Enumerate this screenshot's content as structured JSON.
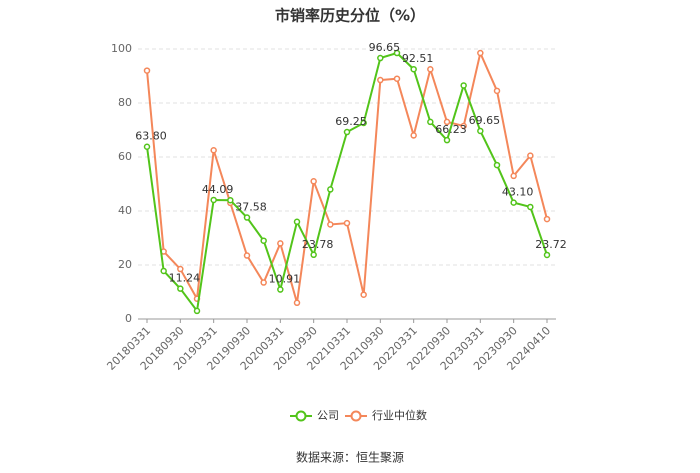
{
  "chart_data": {
    "type": "line",
    "title": "市销率历史分位（%）",
    "categories": [
      "20180331",
      null,
      "20180930",
      null,
      "20190331",
      null,
      "20190930",
      null,
      "20200331",
      null,
      "20200930",
      null,
      "20210331",
      null,
      "20210930",
      null,
      "20220331",
      null,
      "20220930",
      null,
      "20230331",
      null,
      "20230930",
      null,
      "20240410"
    ],
    "series": [
      {
        "name": "公司",
        "color": "#52c41a",
        "values": [
          63.8,
          17.8,
          11.24,
          3,
          44.09,
          44,
          37.58,
          29,
          10.91,
          36,
          23.78,
          48,
          69.25,
          72.6,
          96.65,
          98.5,
          92.51,
          73,
          66.23,
          86.5,
          69.65,
          57,
          43.1,
          41.5,
          23.72
        ],
        "value_labels": [
          "63.80",
          null,
          "11.24",
          null,
          "44.09",
          null,
          "37.58",
          null,
          "10.91",
          null,
          "23.78",
          null,
          "69.25",
          null,
          "96.65",
          null,
          "92.51",
          null,
          "66.23",
          null,
          "69.65",
          null,
          "43.10",
          null,
          "23.72"
        ]
      },
      {
        "name": "行业中位数",
        "color": "#f4875a",
        "values": [
          92,
          25,
          18.5,
          7.5,
          62.5,
          43,
          23.5,
          13.5,
          28,
          6,
          51,
          35,
          35.5,
          9,
          88.5,
          89,
          68,
          92.5,
          73,
          71.5,
          98.5,
          84.5,
          53,
          60.5,
          37
        ]
      }
    ],
    "ylim": [
      0,
      100
    ],
    "yticks": [
      0,
      20,
      40,
      60,
      80,
      100
    ],
    "grid": true,
    "source": "数据来源：恒生聚源"
  }
}
